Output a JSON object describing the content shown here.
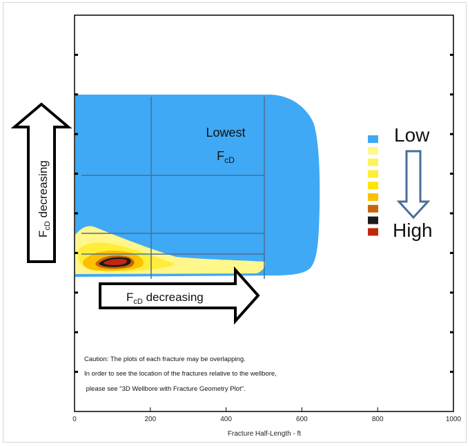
{
  "chart_data": {
    "type": "heatmap",
    "title": "",
    "xlabel": "Fracture Half-Length - ft",
    "ylabel": "",
    "xlim": [
      0,
      1000
    ],
    "x_ticks": [
      0,
      200,
      400,
      600,
      800,
      1000
    ],
    "grid_vertical_x": [
      200,
      500
    ],
    "regions": [
      {
        "level": "Low",
        "color": "#3fa9f5",
        "x_extent": [
          0,
          630
        ]
      },
      {
        "level": "intermediate",
        "color": "#fff78c",
        "x_extent": [
          0,
          500
        ]
      },
      {
        "level": "intermediate",
        "color": "#ffe500",
        "x_extent": [
          10,
          250
        ]
      },
      {
        "level": "intermediate",
        "color": "#ffc000",
        "x_extent": [
          30,
          200
        ]
      },
      {
        "level": "intermediate",
        "color": "#c8640a",
        "x_extent": [
          60,
          160
        ]
      },
      {
        "level": "intermediate",
        "color": "#1a1a1a",
        "x_extent": [
          70,
          145
        ]
      },
      {
        "level": "High",
        "color": "#c0280f",
        "x_extent": [
          75,
          140
        ]
      }
    ],
    "legend": {
      "position": "right",
      "low_label": "Low",
      "high_label": "High",
      "colors": [
        "#3fa9f5",
        "#fff78c",
        "#fff35c",
        "#ffed3a",
        "#ffe500",
        "#ffc000",
        "#c8640a",
        "#1a1a1a",
        "#c0280f"
      ]
    },
    "annotations": {
      "lowest_label": "Lowest",
      "lowest_sub_main": "F",
      "lowest_sub_script": "cD",
      "vertical_arrow": {
        "main": "F",
        "sub": "cD",
        "rest": " decreasing"
      },
      "horizontal_arrow": {
        "main": "F",
        "sub": "cD",
        "rest": " decreasing"
      },
      "caption_lines": [
        "Caution: The plots of each fracture may be overlapping.",
        "In order to see the location of the fractures relative  to the wellbore,",
        " please see \"3D Wellbore with Fracture Geometry Plot\"."
      ]
    }
  }
}
